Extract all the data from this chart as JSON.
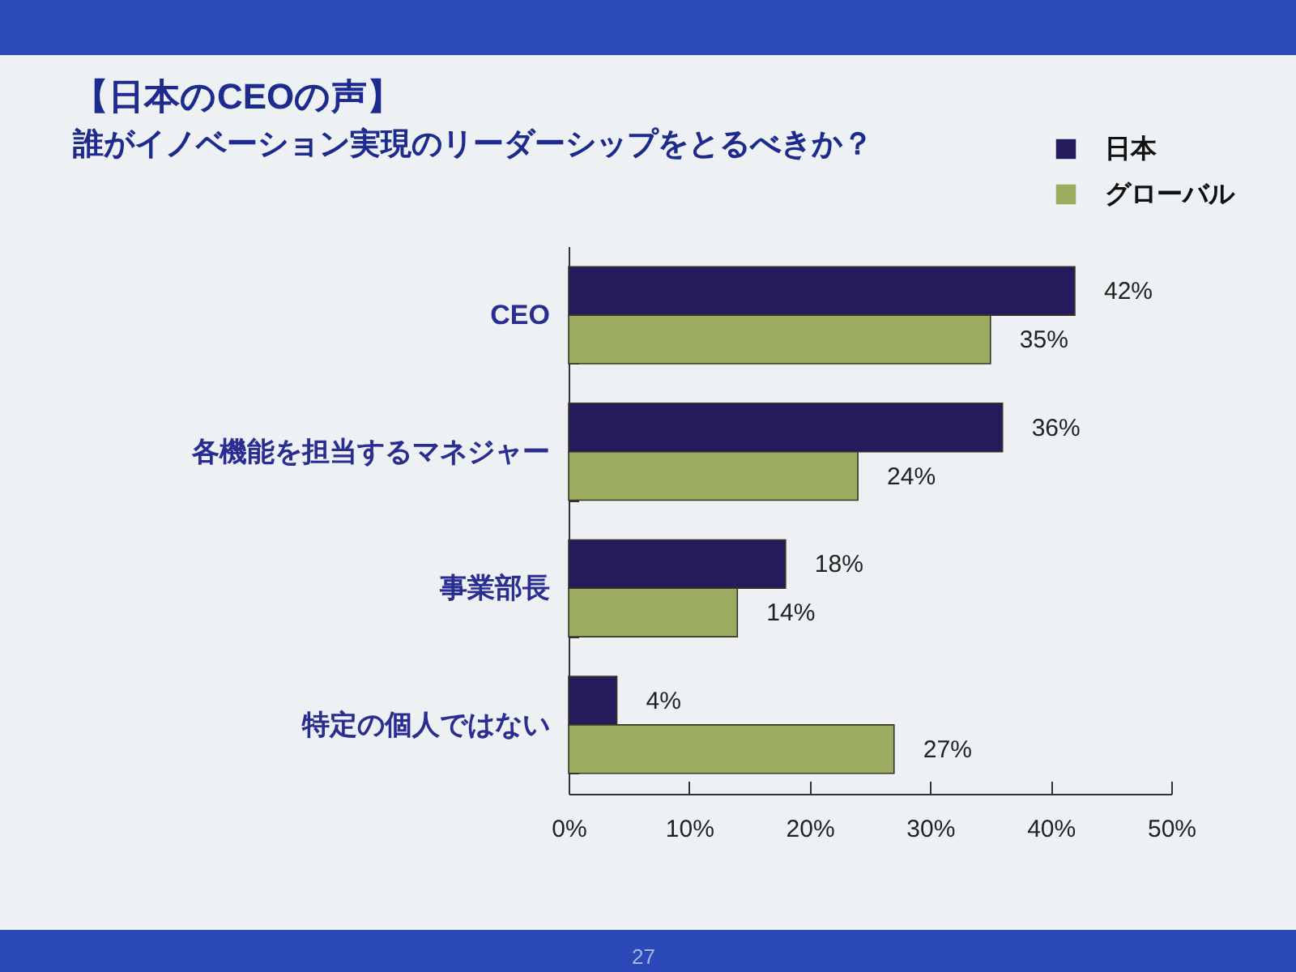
{
  "chart_data": {
    "type": "bar",
    "orientation": "horizontal",
    "title": "【日本のCEOの声】",
    "subtitle": "誰がイノベーション実現のリーダーシップをとるべきか？",
    "categories": [
      "CEO",
      "各機能を担当するマネジャー",
      "事業部長",
      "特定の個人ではない"
    ],
    "series": [
      {
        "name": "日本",
        "color": "#251b5c",
        "values": [
          42,
          36,
          18,
          4
        ],
        "value_labels": [
          "42%",
          "36%",
          "18%",
          "4%"
        ]
      },
      {
        "name": "グローバル",
        "color": "#9bab60",
        "values": [
          35,
          24,
          14,
          27
        ],
        "value_labels": [
          "35%",
          "24%",
          "14%",
          "27%"
        ]
      }
    ],
    "xlim": [
      0,
      50
    ],
    "xticks": [
      {
        "value": 0,
        "label": "0%"
      },
      {
        "value": 10,
        "label": "10%"
      },
      {
        "value": 20,
        "label": "20%"
      },
      {
        "value": 30,
        "label": "30%"
      },
      {
        "value": 40,
        "label": "40%"
      },
      {
        "value": 50,
        "label": "50%"
      }
    ],
    "legend": "top right",
    "annotations": [
      "27"
    ]
  }
}
